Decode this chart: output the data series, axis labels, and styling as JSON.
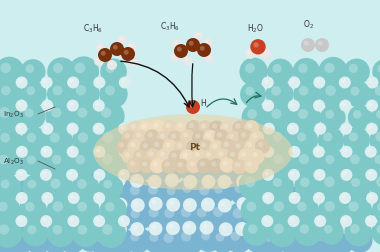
{
  "bg_color": "#ceeef0",
  "In2O3_big": "#7ec8c8",
  "In2O3_small": "#ddeef0",
  "Al2O3_big": "#7ab4d0",
  "Al2O3_small": "#ddeef0",
  "Pt_light": "#f0dfc0",
  "Pt_dark": "#d8c09a",
  "mol_C": "#7a2e0a",
  "mol_H_white": "#e8e8e8",
  "mol_O_red": "#c84020",
  "mol_O_orange": "#c89050",
  "arrow_dark": "#111111",
  "arrow_teal": "#207060",
  "label_color": "#333333"
}
